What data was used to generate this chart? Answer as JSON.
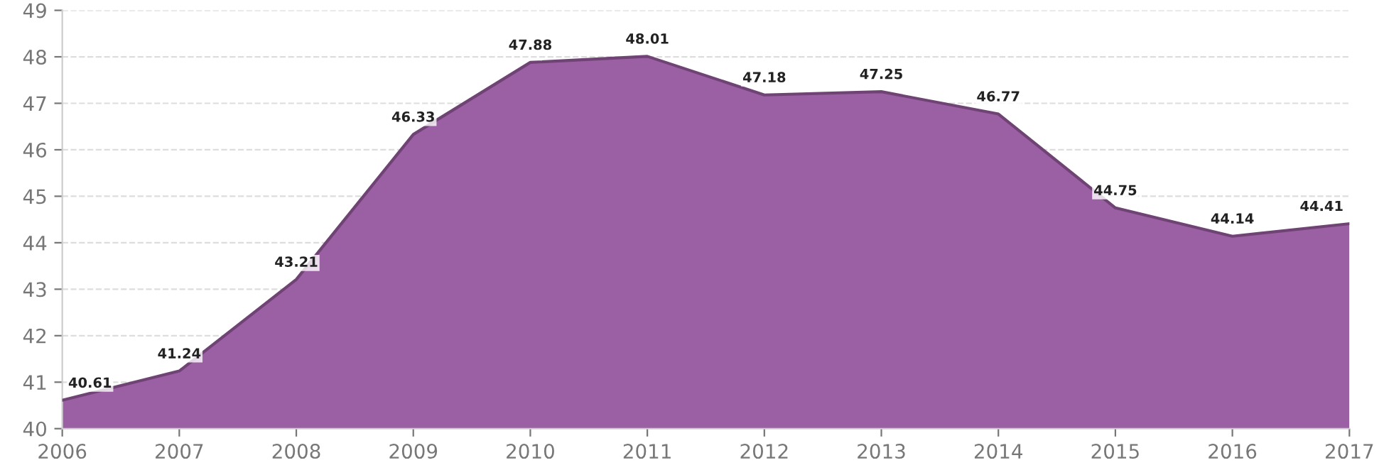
{
  "chart_data": {
    "type": "area",
    "categories": [
      "2006",
      "2007",
      "2008",
      "2009",
      "2010",
      "2011",
      "2012",
      "2013",
      "2014",
      "2015",
      "2016",
      "2017"
    ],
    "series": [
      {
        "color": "#9b5fa3",
        "values": [
          40.61,
          41.24,
          43.21,
          46.33,
          47.88,
          48.01,
          47.18,
          47.25,
          46.77,
          44.75,
          44.14,
          44.41
        ]
      }
    ],
    "ylim": [
      40,
      49
    ],
    "yticks": [
      40,
      41,
      42,
      43,
      44,
      45,
      46,
      47,
      48,
      49
    ],
    "grid": "y",
    "data_labels": true,
    "legend": false,
    "marker": "none",
    "line_style": "solid"
  }
}
